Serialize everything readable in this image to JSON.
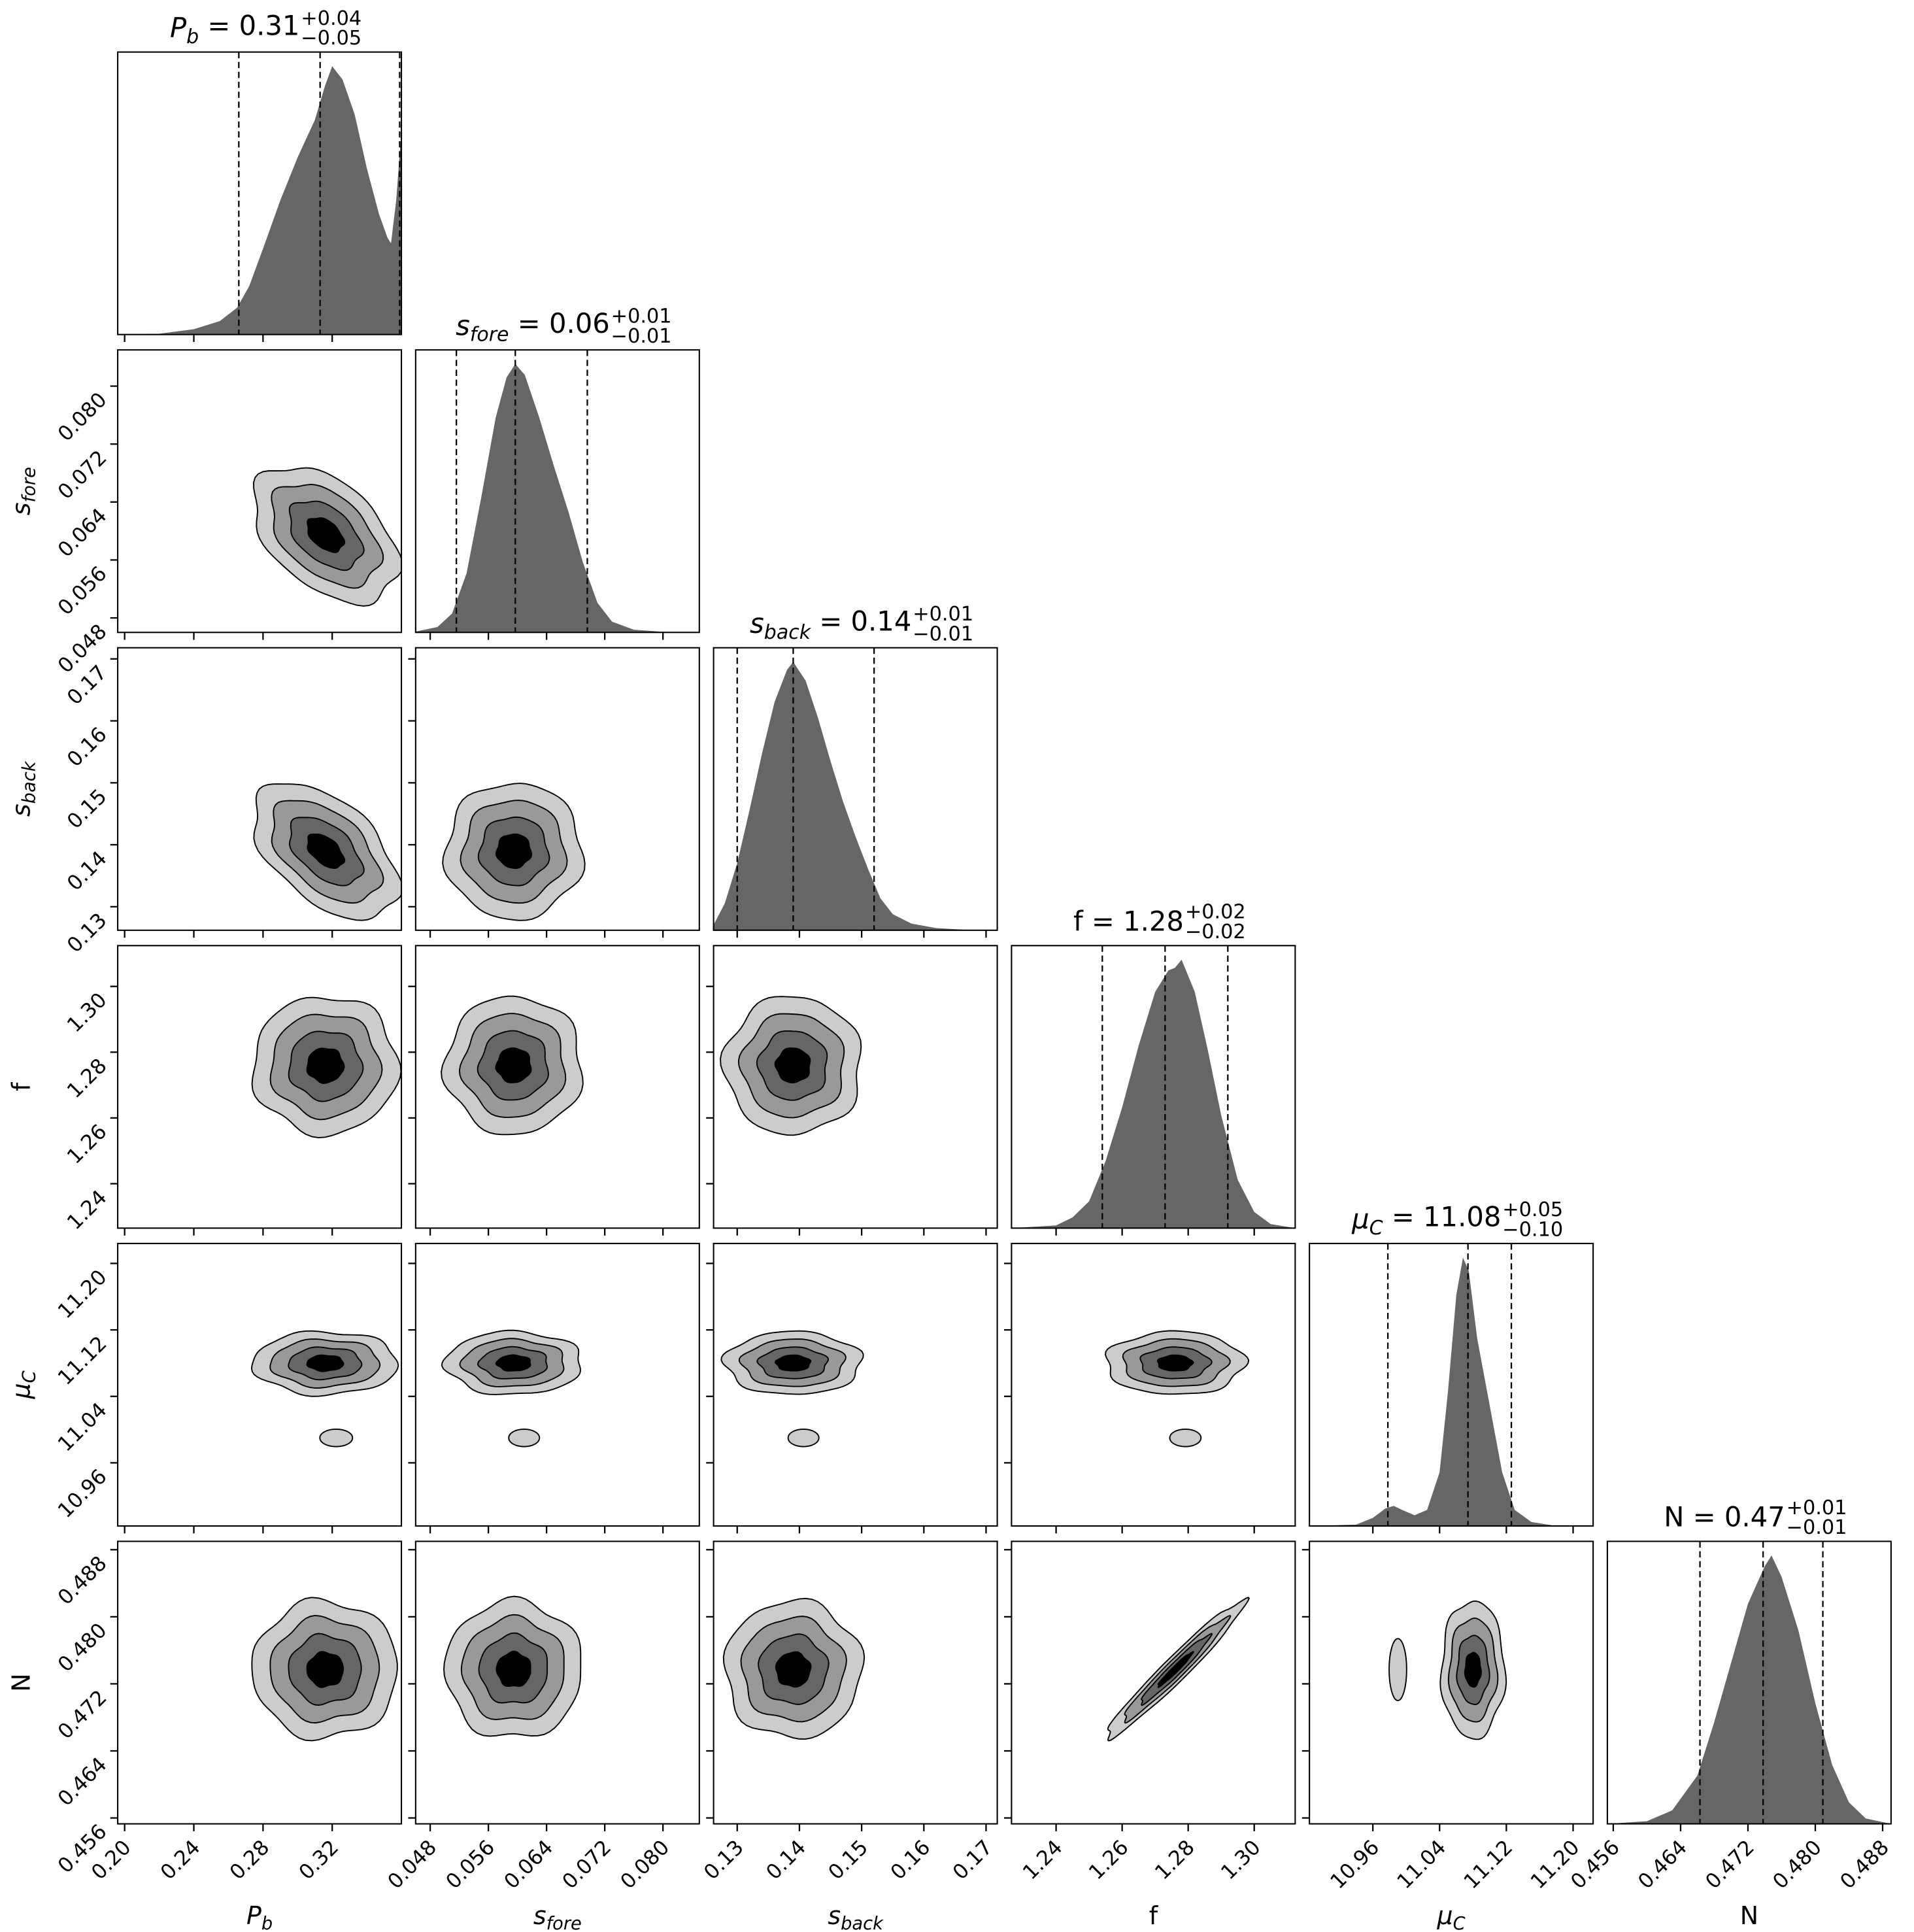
{
  "chart_data": {
    "type": "corner",
    "title": "",
    "levels_sigma": [
      0.5,
      1.0,
      1.5,
      2.0
    ],
    "level_colors": [
      "#000000",
      "#666666",
      "#999999",
      "#cccccc"
    ],
    "hist_color": "#666666",
    "params": [
      {
        "key": "P_b",
        "label_main": "P",
        "label_sub": "b",
        "italic": true,
        "range": [
          0.196,
          0.36
        ],
        "ticks": [
          "0.20",
          "0.24",
          "0.28",
          "0.32"
        ],
        "title_value": "0.31",
        "title_plus": "+0.04",
        "title_minus": "−0.05",
        "quantiles": [
          0.266,
          0.313,
          0.359
        ],
        "center": 0.316,
        "sd": 0.021,
        "density": [
          [
            0.196,
            0
          ],
          [
            0.22,
            0.003
          ],
          [
            0.24,
            0.02
          ],
          [
            0.255,
            0.05
          ],
          [
            0.265,
            0.1
          ],
          [
            0.272,
            0.18
          ],
          [
            0.28,
            0.32
          ],
          [
            0.29,
            0.5
          ],
          [
            0.3,
            0.66
          ],
          [
            0.31,
            0.8
          ],
          [
            0.316,
            0.93
          ],
          [
            0.32,
            1.0
          ],
          [
            0.326,
            0.95
          ],
          [
            0.333,
            0.82
          ],
          [
            0.34,
            0.62
          ],
          [
            0.347,
            0.45
          ],
          [
            0.352,
            0.36
          ],
          [
            0.354,
            0.34
          ],
          [
            0.357,
            0.5
          ],
          [
            0.36,
            0.76
          ]
        ]
      },
      {
        "key": "s_fore",
        "label_main": "s",
        "label_sub": "fore",
        "italic": true,
        "range": [
          0.046,
          0.085
        ],
        "ticks": [
          "0.048",
          "0.056",
          "0.064",
          "0.072",
          "0.080"
        ],
        "title_value": "0.06",
        "title_plus": "+0.01",
        "title_minus": "−0.01",
        "quantiles": [
          0.0516,
          0.0597,
          0.0696
        ],
        "center": 0.0595,
        "sd": 0.0047,
        "density": [
          [
            0.046,
            0.003
          ],
          [
            0.049,
            0.02
          ],
          [
            0.051,
            0.07
          ],
          [
            0.053,
            0.22
          ],
          [
            0.055,
            0.5
          ],
          [
            0.057,
            0.8
          ],
          [
            0.0585,
            0.95
          ],
          [
            0.0597,
            1.0
          ],
          [
            0.061,
            0.96
          ],
          [
            0.063,
            0.8
          ],
          [
            0.065,
            0.62
          ],
          [
            0.067,
            0.45
          ],
          [
            0.069,
            0.26
          ],
          [
            0.071,
            0.11
          ],
          [
            0.073,
            0.04
          ],
          [
            0.076,
            0.01
          ],
          [
            0.08,
            0.002
          ],
          [
            0.085,
            0
          ]
        ]
      },
      {
        "key": "s_back",
        "label_main": "s",
        "label_sub": "back",
        "italic": true,
        "range": [
          0.1262,
          0.1718
        ],
        "ticks": [
          "0.13",
          "0.14",
          "0.15",
          "0.16",
          "0.17"
        ],
        "title_value": "0.14",
        "title_plus": "+0.01",
        "title_minus": "−0.01",
        "quantiles": [
          0.13,
          0.139,
          0.152
        ],
        "center": 0.139,
        "sd": 0.0055,
        "density": [
          [
            0.1262,
            0.02
          ],
          [
            0.128,
            0.1
          ],
          [
            0.13,
            0.25
          ],
          [
            0.132,
            0.45
          ],
          [
            0.134,
            0.66
          ],
          [
            0.136,
            0.85
          ],
          [
            0.138,
            0.97
          ],
          [
            0.139,
            1.0
          ],
          [
            0.141,
            0.93
          ],
          [
            0.143,
            0.79
          ],
          [
            0.145,
            0.63
          ],
          [
            0.147,
            0.48
          ],
          [
            0.149,
            0.35
          ],
          [
            0.151,
            0.23
          ],
          [
            0.153,
            0.12
          ],
          [
            0.155,
            0.06
          ],
          [
            0.158,
            0.025
          ],
          [
            0.162,
            0.008
          ],
          [
            0.168,
            0
          ],
          [
            0.1718,
            0
          ]
        ]
      },
      {
        "key": "f",
        "label_main": "f",
        "label_sub": "",
        "italic": false,
        "range": [
          1.2265,
          1.3124
        ],
        "ticks": [
          "1.24",
          "1.26",
          "1.28",
          "1.30"
        ],
        "title_value": "1.28",
        "title_plus": "+0.02",
        "title_minus": "−0.02",
        "quantiles": [
          1.254,
          1.273,
          1.292
        ],
        "center": 1.276,
        "sd": 0.0105,
        "density": [
          [
            1.2265,
            0
          ],
          [
            1.24,
            0.01
          ],
          [
            1.245,
            0.04
          ],
          [
            1.25,
            0.1
          ],
          [
            1.255,
            0.25
          ],
          [
            1.26,
            0.45
          ],
          [
            1.265,
            0.68
          ],
          [
            1.27,
            0.88
          ],
          [
            1.274,
            0.96
          ],
          [
            1.276,
            0.97
          ],
          [
            1.278,
            1.0
          ],
          [
            1.282,
            0.88
          ],
          [
            1.286,
            0.66
          ],
          [
            1.29,
            0.42
          ],
          [
            1.295,
            0.18
          ],
          [
            1.3,
            0.06
          ],
          [
            1.305,
            0.015
          ],
          [
            1.3124,
            0
          ]
        ]
      },
      {
        "key": "mu_C",
        "label_main": "μ",
        "label_sub": "C",
        "italic": true,
        "range": [
          10.884,
          11.224
        ],
        "ticks": [
          "10.96",
          "11.04",
          "11.12",
          "11.20"
        ],
        "title_value": "11.08",
        "title_plus": "+0.05",
        "title_minus": "−0.10",
        "quantiles": [
          10.978,
          11.074,
          11.126
        ],
        "center": 11.08,
        "sd": 0.019,
        "secondary_mode": {
          "center": 10.99,
          "sd": 0.007
        },
        "density": [
          [
            10.884,
            0
          ],
          [
            10.94,
            0.005
          ],
          [
            10.96,
            0.03
          ],
          [
            10.975,
            0.065
          ],
          [
            10.985,
            0.075
          ],
          [
            10.995,
            0.06
          ],
          [
            11.01,
            0.04
          ],
          [
            11.025,
            0.06
          ],
          [
            11.04,
            0.2
          ],
          [
            11.05,
            0.5
          ],
          [
            11.06,
            0.86
          ],
          [
            11.068,
            1.0
          ],
          [
            11.075,
            0.95
          ],
          [
            11.085,
            0.7
          ],
          [
            11.1,
            0.45
          ],
          [
            11.115,
            0.2
          ],
          [
            11.13,
            0.06
          ],
          [
            11.15,
            0.015
          ],
          [
            11.18,
            0
          ],
          [
            11.224,
            0
          ]
        ]
      },
      {
        "key": "N",
        "label_main": "N",
        "label_sub": "",
        "italic": false,
        "range": [
          0.4553,
          0.489
        ],
        "ticks": [
          "0.456",
          "0.464",
          "0.472",
          "0.480",
          "0.488"
        ],
        "title_value": "0.47",
        "title_plus": "+0.01",
        "title_minus": "−0.01",
        "quantiles": [
          0.4663,
          0.4738,
          0.4809
        ],
        "center": 0.4737,
        "sd": 0.0041,
        "density": [
          [
            0.4553,
            0
          ],
          [
            0.46,
            0.01
          ],
          [
            0.463,
            0.05
          ],
          [
            0.466,
            0.18
          ],
          [
            0.468,
            0.38
          ],
          [
            0.47,
            0.6
          ],
          [
            0.472,
            0.82
          ],
          [
            0.474,
            0.96
          ],
          [
            0.4748,
            1.0
          ],
          [
            0.476,
            0.92
          ],
          [
            0.478,
            0.72
          ],
          [
            0.48,
            0.45
          ],
          [
            0.482,
            0.22
          ],
          [
            0.484,
            0.08
          ],
          [
            0.486,
            0.02
          ],
          [
            0.489,
            0
          ]
        ]
      }
    ],
    "correlations": {
      "1,0": -0.45,
      "2,0": -0.5,
      "2,1": 0.0,
      "3,0": 0.0,
      "3,1": 0.0,
      "3,2": 0.0,
      "4,0": 0.0,
      "4,1": 0.0,
      "4,2": 0.0,
      "4,3": 0.0,
      "5,0": 0.0,
      "5,1": 0.0,
      "5,2": 0.0,
      "5,3": 0.97,
      "5,4": 0.0
    }
  }
}
